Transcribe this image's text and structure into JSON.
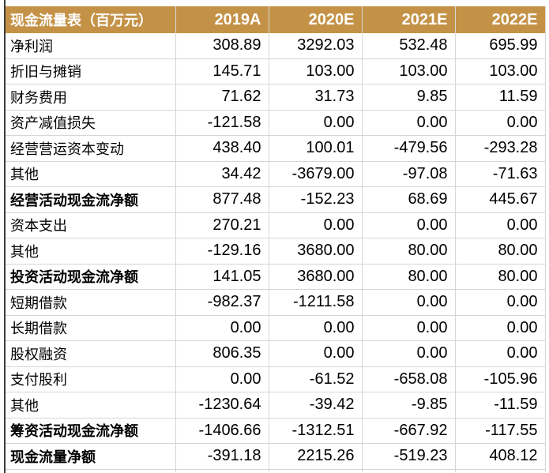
{
  "theme": {
    "header_bg": "#C49247",
    "header_text": "#FFFFFF",
    "grid_color": "#D6D6D6",
    "text_color": "#000000",
    "rule_color": "#3D3D3D"
  },
  "table": {
    "title": "现金流量表（百万元）",
    "columns": [
      "2019A",
      "2020E",
      "2021E",
      "2022E"
    ],
    "rows": [
      {
        "label": "净利润",
        "bold": false,
        "values": [
          "308.89",
          "3292.03",
          "532.48",
          "695.99"
        ]
      },
      {
        "label": "折旧与摊销",
        "bold": false,
        "values": [
          "145.71",
          "103.00",
          "103.00",
          "103.00"
        ]
      },
      {
        "label": "财务费用",
        "bold": false,
        "values": [
          "71.62",
          "31.73",
          "9.85",
          "11.59"
        ]
      },
      {
        "label": "资产减值损失",
        "bold": false,
        "values": [
          "-121.58",
          "0.00",
          "0.00",
          "0.00"
        ]
      },
      {
        "label": "经营营运资本变动",
        "bold": false,
        "values": [
          "438.40",
          "100.01",
          "-479.56",
          "-293.28"
        ]
      },
      {
        "label": "其他",
        "bold": false,
        "values": [
          "34.42",
          "-3679.00",
          "-97.08",
          "-71.63"
        ]
      },
      {
        "label": "经营活动现金流净额",
        "bold": true,
        "values": [
          "877.48",
          "-152.23",
          "68.69",
          "445.67"
        ]
      },
      {
        "label": "资本支出",
        "bold": false,
        "values": [
          "270.21",
          "0.00",
          "0.00",
          "0.00"
        ]
      },
      {
        "label": "其他",
        "bold": false,
        "values": [
          "-129.16",
          "3680.00",
          "80.00",
          "80.00"
        ]
      },
      {
        "label": "投资活动现金流净额",
        "bold": true,
        "values": [
          "141.05",
          "3680.00",
          "80.00",
          "80.00"
        ]
      },
      {
        "label": "短期借款",
        "bold": false,
        "values": [
          "-982.37",
          "-1211.58",
          "0.00",
          "0.00"
        ]
      },
      {
        "label": "长期借款",
        "bold": false,
        "values": [
          "0.00",
          "0.00",
          "0.00",
          "0.00"
        ]
      },
      {
        "label": "股权融资",
        "bold": false,
        "values": [
          "806.35",
          "0.00",
          "0.00",
          "0.00"
        ]
      },
      {
        "label": "支付股利",
        "bold": false,
        "values": [
          "0.00",
          "-61.52",
          "-658.08",
          "-105.96"
        ]
      },
      {
        "label": "其他",
        "bold": false,
        "values": [
          "-1230.64",
          "-39.42",
          "-9.85",
          "-11.59"
        ]
      },
      {
        "label": "筹资活动现金流净额",
        "bold": true,
        "values": [
          "-1406.66",
          "-1312.51",
          "-667.92",
          "-117.55"
        ]
      },
      {
        "label": "现金流量净额",
        "bold": true,
        "values": [
          "-391.18",
          "2215.26",
          "-519.23",
          "408.12"
        ]
      }
    ]
  }
}
